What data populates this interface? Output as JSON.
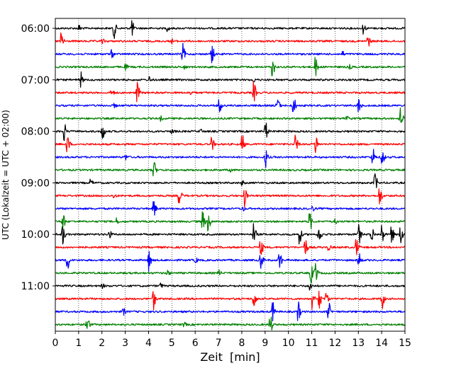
{
  "chart_data": {
    "type": "line",
    "title": "",
    "xlabel": "Zeit  [min]",
    "ylabel": "UTC (Lokalzeit = UTC + 02:00)",
    "xlim": [
      0,
      15
    ],
    "x_ticks": [
      "0",
      "1",
      "2",
      "3",
      "4",
      "5",
      "6",
      "7",
      "8",
      "9",
      "10",
      "11",
      "12",
      "13",
      "14",
      "15"
    ],
    "y_tick_labels": [
      "06:00",
      "07:00",
      "08:00",
      "09:00",
      "10:00",
      "11:00"
    ],
    "grid": "vertical dotted",
    "legend": "none",
    "line_colors": [
      "#000000",
      "#ff0000",
      "#0000ff",
      "#008000"
    ],
    "traces": [
      {
        "start": "06:00",
        "color": "#000000",
        "events": [
          [
            2.5,
            1.0
          ],
          [
            3.25,
            1.0
          ],
          [
            1.0,
            0.3
          ],
          [
            4.8,
            0.25
          ],
          [
            13.2,
            0.5
          ]
        ]
      },
      {
        "start": "06:15",
        "color": "#ff0000",
        "events": [
          [
            0.25,
            1.0
          ],
          [
            13.4,
            0.6
          ],
          [
            5.0,
            0.2
          ],
          [
            2.0,
            0.2
          ]
        ]
      },
      {
        "start": "06:30",
        "color": "#0000ff",
        "events": [
          [
            5.45,
            1.0
          ],
          [
            6.7,
            1.0
          ],
          [
            2.4,
            0.35
          ],
          [
            12.3,
            0.25
          ]
        ]
      },
      {
        "start": "06:45",
        "color": "#008000",
        "events": [
          [
            9.3,
            1.0
          ],
          [
            11.15,
            1.0
          ],
          [
            3.0,
            0.25
          ],
          [
            12.6,
            0.2
          ],
          [
            5.5,
            0.2
          ]
        ]
      },
      {
        "start": "07:00",
        "color": "#000000",
        "events": [
          [
            1.05,
            1.0
          ],
          [
            4.0,
            0.3
          ],
          [
            8.5,
            0.2
          ]
        ]
      },
      {
        "start": "07:15",
        "color": "#ff0000",
        "events": [
          [
            3.5,
            1.0
          ],
          [
            8.5,
            1.0
          ],
          [
            2.4,
            0.4
          ],
          [
            5.8,
            0.2
          ]
        ]
      },
      {
        "start": "07:30",
        "color": "#0000ff",
        "events": [
          [
            7.0,
            1.0
          ],
          [
            9.5,
            1.0
          ],
          [
            10.2,
            1.0
          ],
          [
            13.0,
            0.8
          ],
          [
            2.5,
            0.2
          ]
        ]
      },
      {
        "start": "07:45",
        "color": "#008000",
        "events": [
          [
            14.8,
            1.0
          ],
          [
            12.5,
            0.2
          ],
          [
            4.5,
            0.2
          ]
        ]
      },
      {
        "start": "08:00",
        "color": "#000000",
        "events": [
          [
            0.35,
            1.0
          ],
          [
            2.0,
            1.0
          ],
          [
            9.0,
            1.0
          ],
          [
            5.0,
            0.25
          ],
          [
            6.2,
            0.2
          ]
        ]
      },
      {
        "start": "08:15",
        "color": "#ff0000",
        "events": [
          [
            0.5,
            1.0
          ],
          [
            8.0,
            1.0
          ],
          [
            10.3,
            1.0
          ],
          [
            11.15,
            1.0
          ],
          [
            6.7,
            0.7
          ]
        ]
      },
      {
        "start": "08:30",
        "color": "#0000ff",
        "events": [
          [
            9.0,
            1.0
          ],
          [
            13.6,
            1.0
          ],
          [
            14.0,
            1.0
          ],
          [
            3.0,
            0.25
          ]
        ]
      },
      {
        "start": "08:45",
        "color": "#008000",
        "events": [
          [
            4.2,
            1.0
          ],
          [
            7.5,
            0.2
          ]
        ]
      },
      {
        "start": "09:00",
        "color": "#000000",
        "events": [
          [
            13.7,
            1.0
          ],
          [
            1.5,
            0.3
          ],
          [
            8.0,
            0.2
          ]
        ]
      },
      {
        "start": "09:15",
        "color": "#ff0000",
        "events": [
          [
            5.3,
            1.0
          ],
          [
            8.1,
            1.0
          ],
          [
            13.9,
            1.0
          ],
          [
            2.5,
            0.2
          ]
        ]
      },
      {
        "start": "09:30",
        "color": "#0000ff",
        "events": [
          [
            4.2,
            1.0
          ],
          [
            8.0,
            0.3
          ],
          [
            11.0,
            0.25
          ]
        ]
      },
      {
        "start": "09:45",
        "color": "#008000",
        "events": [
          [
            0.3,
            1.0
          ],
          [
            6.3,
            1.0
          ],
          [
            6.55,
            1.0
          ],
          [
            10.9,
            1.0
          ],
          [
            2.6,
            0.3
          ],
          [
            12.0,
            0.2
          ]
        ]
      },
      {
        "start": "10:00",
        "color": "#000000",
        "events": [
          [
            0.3,
            1.0
          ],
          [
            8.5,
            1.0
          ],
          [
            10.45,
            1.0
          ],
          [
            11.3,
            1.0
          ],
          [
            13.0,
            1.0
          ],
          [
            13.55,
            1.0
          ],
          [
            14.0,
            1.0
          ],
          [
            14.4,
            1.0
          ],
          [
            14.8,
            1.0
          ],
          [
            2.3,
            0.4
          ]
        ]
      },
      {
        "start": "10:15",
        "color": "#ff0000",
        "events": [
          [
            8.8,
            1.0
          ],
          [
            10.7,
            1.0
          ],
          [
            12.9,
            1.0
          ],
          [
            11.7,
            0.3
          ]
        ]
      },
      {
        "start": "10:30",
        "color": "#0000ff",
        "events": [
          [
            0.5,
            1.0
          ],
          [
            4.0,
            1.0
          ],
          [
            8.8,
            1.0
          ],
          [
            9.6,
            1.0
          ],
          [
            13.0,
            0.8
          ],
          [
            6.0,
            0.25
          ]
        ]
      },
      {
        "start": "10:45",
        "color": "#008000",
        "events": [
          [
            10.95,
            1.0
          ],
          [
            11.15,
            1.0
          ],
          [
            4.8,
            0.3
          ],
          [
            7.0,
            0.25
          ]
        ]
      },
      {
        "start": "11:00",
        "color": "#000000",
        "events": [
          [
            10.9,
            0.5
          ],
          [
            4.5,
            0.25
          ],
          [
            2.0,
            0.2
          ]
        ]
      },
      {
        "start": "11:15",
        "color": "#ff0000",
        "events": [
          [
            4.2,
            1.0
          ],
          [
            8.5,
            1.0
          ],
          [
            11.0,
            1.0
          ],
          [
            11.3,
            1.0
          ],
          [
            14.0,
            1.0
          ],
          [
            11.6,
            0.7
          ]
        ]
      },
      {
        "start": "11:30",
        "color": "#0000ff",
        "events": [
          [
            9.3,
            1.0
          ],
          [
            10.4,
            1.0
          ],
          [
            11.7,
            1.0
          ],
          [
            2.9,
            0.35
          ]
        ]
      },
      {
        "start": "11:45",
        "color": "#008000",
        "events": [
          [
            1.35,
            1.0
          ],
          [
            9.2,
            1.0
          ],
          [
            5.5,
            0.2
          ]
        ]
      }
    ]
  }
}
